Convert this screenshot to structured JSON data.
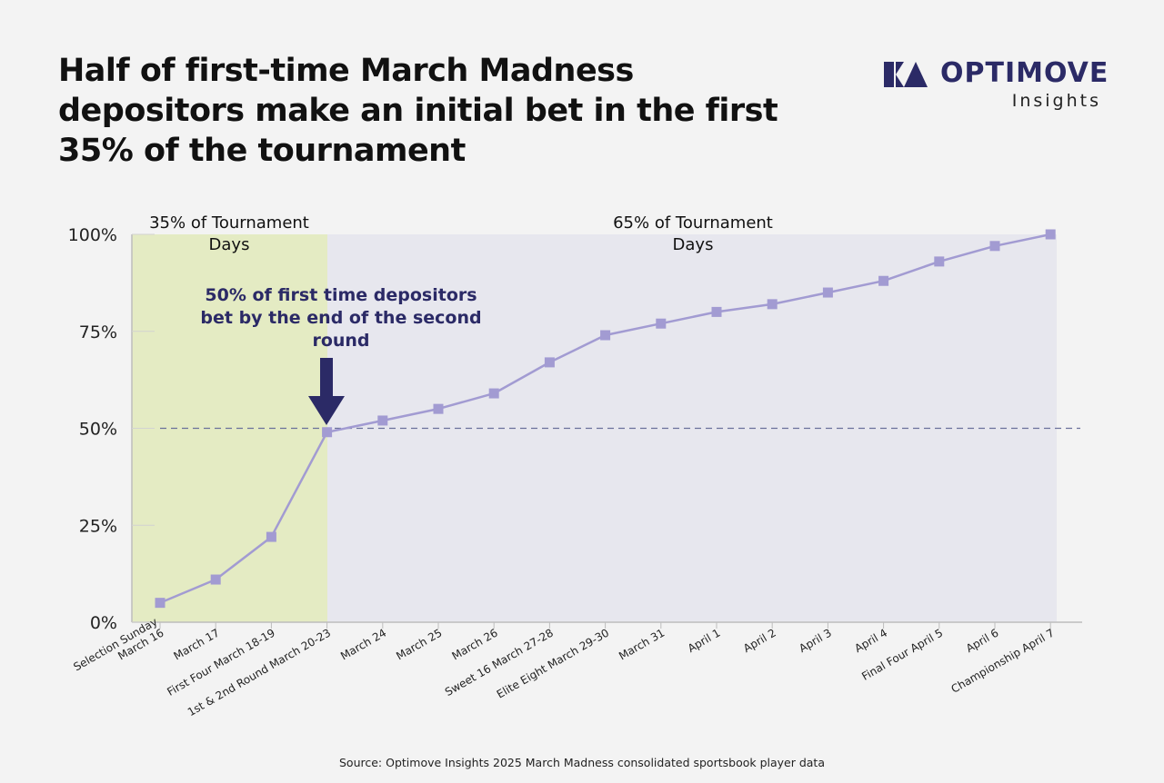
{
  "header": {
    "title": "Half of first-time March Madness depositors make an initial bet in the first 35% of the tournament",
    "logo_word": "OPTIMOVE",
    "logo_sub": "Insights"
  },
  "footer": {
    "source": "Source: Optimove Insights 2025 March Madness consolidated sportsbook player data"
  },
  "chart_data": {
    "type": "line",
    "title": "Half of first-time March Madness depositors make an initial bet in the first 35% of the tournament",
    "xlabel": "",
    "ylabel": "",
    "categories": [
      "Selection Sunday March 16",
      "March 17",
      "First Four March 18-19",
      "1st & 2nd Round March 20-23",
      "March 24",
      "March 25",
      "March 26",
      "Sweet 16 March 27-28",
      "Elite Eight March 29-30",
      "March 31",
      "April 1",
      "April 2",
      "April 3",
      "April 4",
      "Final Four April 5",
      "April 6",
      "Championship April 7"
    ],
    "x_label_lines": [
      [
        "Selection Sunday",
        "March 16"
      ],
      [
        "March 17"
      ],
      [
        "First Four March 18-19"
      ],
      [
        "1st & 2nd Round March 20-23"
      ],
      [
        "March 24"
      ],
      [
        "March 25"
      ],
      [
        "March 26"
      ],
      [
        "Sweet 16 March 27-28"
      ],
      [
        "Elite Eight March 29-30"
      ],
      [
        "March 31"
      ],
      [
        "April 1"
      ],
      [
        "April 2"
      ],
      [
        "April 3"
      ],
      [
        "April 4"
      ],
      [
        "Final Four April 5"
      ],
      [
        "April 6"
      ],
      [
        "Championship April 7"
      ]
    ],
    "values": [
      5,
      11,
      22,
      49,
      52,
      55,
      59,
      67,
      74,
      77,
      80,
      82,
      85,
      88,
      93,
      97,
      100
    ],
    "ylim": [
      0,
      100
    ],
    "yticks": [
      0,
      25,
      50,
      75,
      100
    ],
    "ytick_labels": [
      "0%",
      "25%",
      "50%",
      "75%",
      "100%"
    ],
    "reference_line": 50,
    "regions": [
      {
        "label_lines": [
          "35% of Tournament",
          "Days"
        ],
        "color": "#e4ebc3"
      },
      {
        "label_lines": [
          "65% of Tournament",
          "Days"
        ],
        "color": "#e7e7ee"
      }
    ],
    "annotation_lines": [
      "50% of first time depositors",
      "bet by the end of the second",
      "round"
    ],
    "colors": {
      "line": "#a29bd2",
      "marker": "#a29bd2",
      "arrow": "#2b2a66",
      "reference": "#6a709a",
      "axis": "#bdbdbd"
    },
    "grid": false,
    "legend": "none"
  }
}
